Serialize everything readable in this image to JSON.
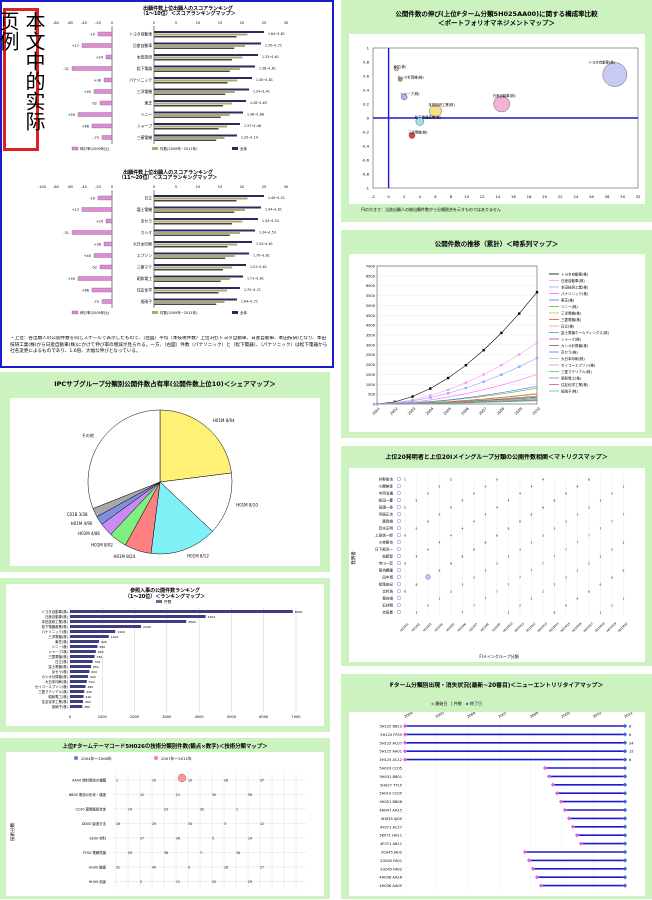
{
  "stamp": {
    "label": "本文中的实际页例"
  },
  "panels": {
    "portfolio": {
      "title": "公開件数の伸び(上位Fターム分類5H025AA00)に関する構成率比較",
      "subtitle": "＜ポートフォリオマネジメントマップ＞",
      "bubble_labels": [
        "トヨタ自動車(株)",
        "日産自動車(株)",
        "本田技研工業(株)",
        "松下電器産業(株)",
        "三洋電機(株)",
        "シャープ(株)",
        "カシオ計算機(株)",
        "東芝(株)"
      ],
      "xticks": [
        "-2",
        "0",
        "2",
        "4",
        "6",
        "8",
        "10",
        "12",
        "14",
        "16",
        "18",
        "20",
        "22",
        "24",
        "26",
        "28",
        "30",
        "32"
      ],
      "yticks": [
        "1",
        "0.8",
        "0.6",
        "0.4",
        "0.2",
        "0",
        "-0.2",
        "-0.4",
        "-0.6",
        "-0.8",
        "-1"
      ],
      "note": "円の大きさ：当該出願人の総出願件数から分類割合を示すものではありません"
    },
    "trend": {
      "title": "公開件数の推移（累計）＜時系列マップ＞",
      "yticks": [
        "7000",
        "6500",
        "6000",
        "5500",
        "5000",
        "4500",
        "4000",
        "3500",
        "3000",
        "2500",
        "2000",
        "1500",
        "1000",
        "500",
        "0"
      ],
      "xticks": [
        "2001",
        "2002",
        "2003",
        "2004",
        "2005",
        "2006",
        "2007",
        "2008",
        "2009",
        "2010"
      ],
      "legend": [
        "トヨタ自動車(株)",
        "日産自動車(株)",
        "本田技研工業(株)",
        "パナソニック(株)",
        "東芝(株)",
        "ソニー(株)",
        "三洋電機(株)",
        "三菱電機(株)",
        "日立(株)",
        "富士電機ホールディングス(株)",
        "シャープ(株)",
        "カシオ計算機(株)",
        "京セラ(株)",
        "大日本印刷(株)",
        "セイコーエプソン(株)",
        "三菱マテリアル(株)",
        "昭和電工(株)",
        "住友化学工業(株)",
        "旭硝子(株)"
      ]
    },
    "matrix": {
      "title": "上位20発明者と上位20Iメイングループ分類の公開件数相関＜マトリクスマップ＞",
      "rows": [
        "井野俊也",
        "小関美季",
        "中西治通",
        "松田一豊",
        "田頭一寿",
        "河原正也",
        "森岡雄",
        "荒木正明",
        "上田信一郎",
        "小林朝也",
        "日下部洋一",
        "佐藤智",
        "寺川一宏",
        "菊池義隆",
        "田中博",
        "松尾由紀",
        "北村浩",
        "長谷雄",
        "石井剛",
        "吉田喜"
      ],
      "ylabel": "発明者",
      "xlabel": "FIメイングループ分類"
    },
    "entry": {
      "title": "Fターム分類別出現・消失状況(最新~20番目)＜ニューエントリリタイアマップ＞",
      "legend": [
        "開始日",
        "件数",
        "終了日"
      ],
      "years": [
        "2004",
        "2005",
        "2006",
        "2007",
        "2008",
        "2009",
        "2010",
        "2011"
      ],
      "rows": [
        "5H125 BB12",
        "5H125 FF05",
        "5H125 AC07",
        "5H125 AA01",
        "5H125 AC12",
        "5H029 CC05",
        "5H031 BB01",
        "5H027 TT15",
        "5H019 CC05",
        "4H051 BB08",
        "4H047 AA15",
        "4H035 AJ00",
        "4F071 AC27",
        "5K071 HH11",
        "4F071 AB11",
        "2G045 JA02",
        "2G045 FA01",
        "2G045 FA02",
        "4H036 AA16",
        "4H036 AA05"
      ],
      "counts": [
        "8",
        "6",
        "24",
        "12",
        "6",
        "",
        "",
        "",
        "",
        "",
        "",
        "",
        "",
        "",
        "",
        "",
        "",
        "",
        "",
        ""
      ]
    },
    "share": {
      "title": "IPCサブグループ分類別公開件数占有率(公開件数上位10)＜シェアマップ＞",
      "labels": [
        "H01M 8/04",
        "H01M 8/10",
        "H01M 8/12",
        "H01M 8/24",
        "H01M 8/02",
        "H01M 4/86",
        "H01M 4/90",
        "C01B 3/38",
        "その他"
      ]
    },
    "ranking": {
      "title": "参照入事の公開件数ランキング",
      "subtitle": "（1～20位）＜ランキングマップ＞",
      "legend": "件数",
      "xticks": [
        "0",
        "1000",
        "2000",
        "3000",
        "4000",
        "5000",
        "6000",
        "7000"
      ],
      "names": [
        "トヨタ自動車(株)",
        "日産自動車(株)",
        "本田技研工業(株)",
        "松下電器産業(株)",
        "パナソニック(株)",
        "三洋電機(株)",
        "東芝(株)",
        "ソニー(株)",
        "シャープ(株)",
        "三菱電機(株)",
        "日立(株)",
        "富士電機(株)",
        "京セラ(株)",
        "カシオ計算機(株)",
        "大日本印刷(株)",
        "セイコーエプソン(株)",
        "三菱マテリアル(株)",
        "昭和電工(株)",
        "住友化学工業(株)",
        "旭硝子(株)"
      ],
      "values": [
        6900,
        4200,
        3600,
        2200,
        1400,
        1200,
        900,
        850,
        800,
        760,
        700,
        650,
        600,
        560,
        520,
        480,
        440,
        420,
        400,
        380
      ]
    },
    "npi": {
      "title": "上位Fタームテーマコード5H026の技術分類別件数(観点×数字)＜技術分類マップ＞",
      "legend": [
        "2004年～2006年",
        "2007年～2011年"
      ],
      "rows": [
        "AA00 燃料電池の種類",
        "BB00 電池の形状・構造",
        "CC00 膜電極接合体",
        "DD00 製造方法",
        "EE00 材料",
        "FF00 電解質膜",
        "GG00 触媒",
        "HH00 用途"
      ],
      "ylabel": "技術分類"
    },
    "left_top": {
      "title": "出願件数上位出願人のスコアランキング",
      "subtitle": "（1～10位）＜スコアランキングマップ＞",
      "axis_left": [
        "-100",
        "-80",
        "-60",
        "-40",
        "-20",
        "0"
      ],
      "axis_right": [
        "0",
        "5",
        "10",
        "15",
        "20",
        "25",
        "30"
      ],
      "names": [
        "トヨタ自動車",
        "日産自動車",
        "本田技研",
        "松下電器",
        "パナソニック",
        "三洋電機",
        "東芝",
        "ソニー",
        "シャープ",
        "三菱電機"
      ],
      "legend": [
        "伸び率(2009年比)",
        "件数(2009年~2011年)",
        "全体"
      ],
      "values_txt": [
        "1.64→1.81",
        "1.35→1.71",
        "1.33→1.61",
        "1.38→1.61",
        "1.40→1.81",
        "1.24→1.41",
        "1.28→1.63",
        "1.36→1.68",
        "1.37→1.48",
        "1.20→1.14"
      ]
    },
    "left_mid": {
      "title": "出願件数上位出願人のスコアランキング",
      "subtitle": "（11～20位）＜スコアランキングマップ＞",
      "names": [
        "日立",
        "富士電機",
        "京セラ",
        "カシオ",
        "大日本印刷",
        "エプソン",
        "三菱マテ",
        "昭和電工",
        "住友化学",
        "旭硝子"
      ],
      "values_txt": [
        "1.40→1.51",
        "1.44→1.61",
        "1.34→1.54",
        "1.34→1.53",
        "1.54→1.61",
        "1.70→1.81",
        "1.51→1.61",
        "1.71→1.81",
        "1.70→1.71",
        "1.64→1.71"
      ]
    },
    "left_note": "・上位：各出願人の公開件数を同じスケールで表示したもので、（左図）平均（本技術件数）上位3社(トヨタ自動車、日産自動車、本田技研)となり、本田技研工業(株)から日産自動車(株)にかけて伸び率の増減が見られる。一方、（右図）件数（パナソニック）と（松下電器）、（パナソニック）は松下電器から社名変更によるものであり、1.6倍、大幅な伸びとなっている。"
  },
  "colors": {
    "bar_pink": "#e08ad8",
    "bar_dark": "#2b2b5a",
    "accent_blue": "#1a1ad0"
  }
}
